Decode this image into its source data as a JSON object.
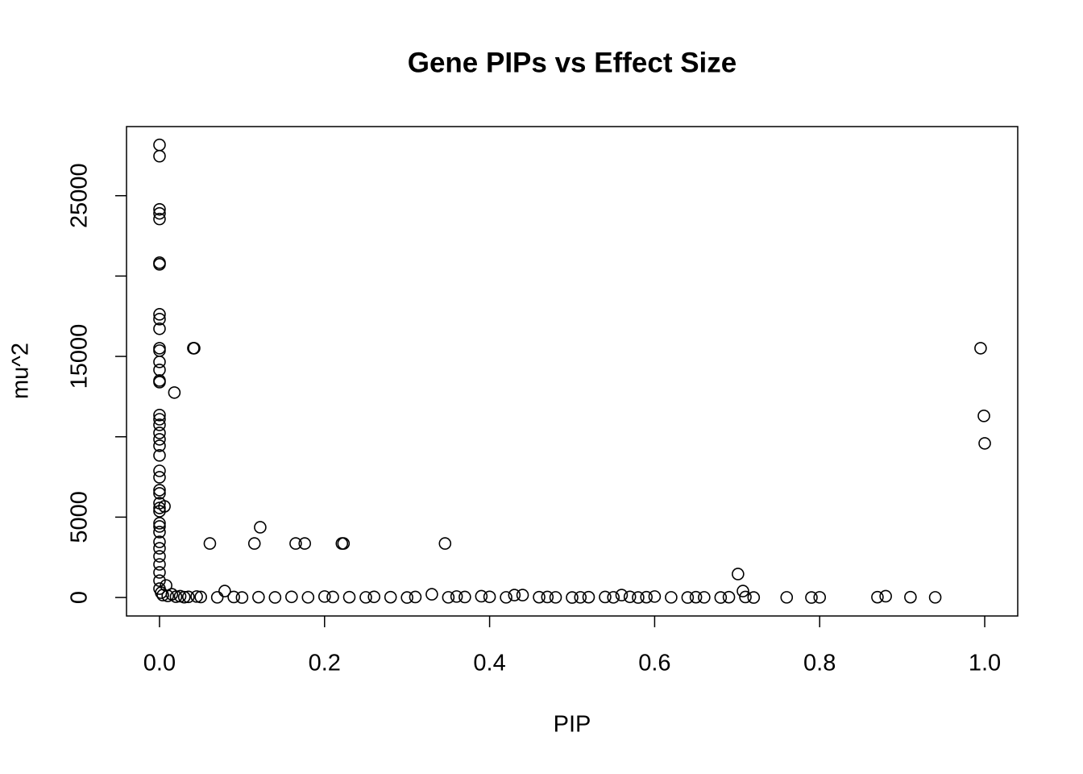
{
  "chart_data": {
    "type": "scatter",
    "title": "Gene PIPs vs Effect Size",
    "xlabel": "PIP",
    "ylabel": "mu^2",
    "x": [
      0,
      0,
      0,
      0,
      0,
      0,
      0,
      0,
      0,
      0,
      0,
      0,
      0,
      0,
      0,
      0,
      0,
      0,
      0,
      0,
      0,
      0,
      0,
      0,
      0,
      0,
      0,
      0,
      0,
      0,
      0,
      0,
      0,
      0,
      0,
      0,
      0,
      0,
      0,
      0,
      0.041,
      0.042,
      0.018,
      0.006,
      0.061,
      0.115,
      0.122,
      0.165,
      0.176,
      0.221,
      0.223,
      0.346,
      0.701,
      0.707,
      0.995,
      0.999,
      1.0,
      0.079,
      0.008,
      0.002,
      0.004,
      0.01,
      0.015,
      0.02,
      0.025,
      0.035,
      0.045,
      0.03,
      0.05,
      0.07,
      0.09,
      0.1,
      0.12,
      0.14,
      0.16,
      0.18,
      0.2,
      0.21,
      0.23,
      0.25,
      0.26,
      0.28,
      0.3,
      0.31,
      0.33,
      0.35,
      0.36,
      0.37,
      0.39,
      0.4,
      0.42,
      0.43,
      0.44,
      0.46,
      0.47,
      0.48,
      0.5,
      0.51,
      0.52,
      0.54,
      0.55,
      0.56,
      0.57,
      0.58,
      0.59,
      0.6,
      0.62,
      0.64,
      0.65,
      0.66,
      0.68,
      0.69,
      0.71,
      0.72,
      0.76,
      0.79,
      0.8,
      0.87,
      0.88,
      0.91,
      0.94
    ],
    "y": [
      28160,
      27460,
      24150,
      23900,
      23550,
      20830,
      20730,
      17620,
      17320,
      16720,
      15510,
      15360,
      14660,
      14160,
      13500,
      13400,
      11350,
      11090,
      10740,
      10240,
      9840,
      9440,
      8840,
      7880,
      7480,
      6680,
      6480,
      5870,
      5570,
      5370,
      4620,
      4420,
      4070,
      3460,
      3060,
      2560,
      2060,
      1560,
      1050,
      550,
      15510,
      15510,
      12750,
      5670,
      3360,
      3360,
      4370,
      3360,
      3360,
      3360,
      3360,
      3360,
      1460,
      400,
      15510,
      11300,
      9590,
      400,
      750,
      300,
      150,
      100,
      200,
      50,
      80,
      40,
      60,
      20,
      30,
      10,
      30,
      0,
      20,
      5,
      40,
      10,
      60,
      30,
      20,
      10,
      40,
      20,
      0,
      30,
      200,
      10,
      60,
      30,
      80,
      40,
      10,
      150,
      150,
      20,
      30,
      10,
      0,
      10,
      20,
      30,
      10,
      150,
      40,
      0,
      20,
      60,
      10,
      0,
      20,
      10,
      0,
      20,
      30,
      0,
      10,
      0,
      10,
      20,
      80,
      20,
      10
    ],
    "color": "#000000",
    "xlim": [
      -0.04,
      1.04
    ],
    "ylim": [
      -1150,
      29300
    ],
    "xticks": [
      {
        "value": 0,
        "label": "0.0"
      },
      {
        "value": 0.2,
        "label": "0.2"
      },
      {
        "value": 0.4,
        "label": "0.4"
      },
      {
        "value": 0.6,
        "label": "0.6"
      },
      {
        "value": 0.8,
        "label": "0.8"
      },
      {
        "value": 1.0,
        "label": "1.0"
      }
    ],
    "yticks": [
      0,
      5000,
      15000,
      25000
    ],
    "yticks_unlabeled": [
      10000,
      20000
    ],
    "grid": false
  }
}
